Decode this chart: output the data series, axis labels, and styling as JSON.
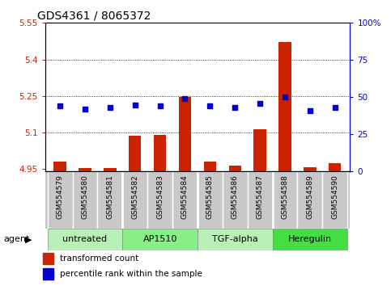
{
  "title": "GDS4361 / 8065372",
  "samples": [
    "GSM554579",
    "GSM554580",
    "GSM554581",
    "GSM554582",
    "GSM554583",
    "GSM554584",
    "GSM554585",
    "GSM554586",
    "GSM554587",
    "GSM554588",
    "GSM554589",
    "GSM554590"
  ],
  "red_values": [
    4.98,
    4.953,
    4.956,
    5.088,
    5.09,
    5.245,
    4.982,
    4.963,
    5.115,
    5.47,
    4.957,
    4.975
  ],
  "blue_values": [
    44,
    42,
    43,
    45,
    44,
    49,
    44,
    43,
    46,
    50,
    41,
    43
  ],
  "ylim_left": [
    4.94,
    5.55
  ],
  "ylim_right": [
    0,
    100
  ],
  "yticks_left": [
    4.95,
    5.1,
    5.25,
    5.4,
    5.55
  ],
  "yticks_right": [
    0,
    25,
    50,
    75,
    100
  ],
  "ytick_labels_left": [
    "4.95",
    "5.1",
    "5.25",
    "5.4",
    "5.55"
  ],
  "ytick_labels_right": [
    "0",
    "25",
    "50",
    "75",
    "100%"
  ],
  "group_labels": [
    "untreated",
    "AP1510",
    "TGF-alpha",
    "Heregulin"
  ],
  "group_colors": [
    "#b8f0b8",
    "#88ee88",
    "#b8f0b8",
    "#44dd44"
  ],
  "bar_color": "#cc2200",
  "dot_color": "#0000cc",
  "bar_bottom": 4.94,
  "legend_red": "transformed count",
  "legend_blue": "percentile rank within the sample",
  "agent_label": "agent",
  "sample_bg": "#c8c8c8",
  "plot_bg": "#ffffff"
}
